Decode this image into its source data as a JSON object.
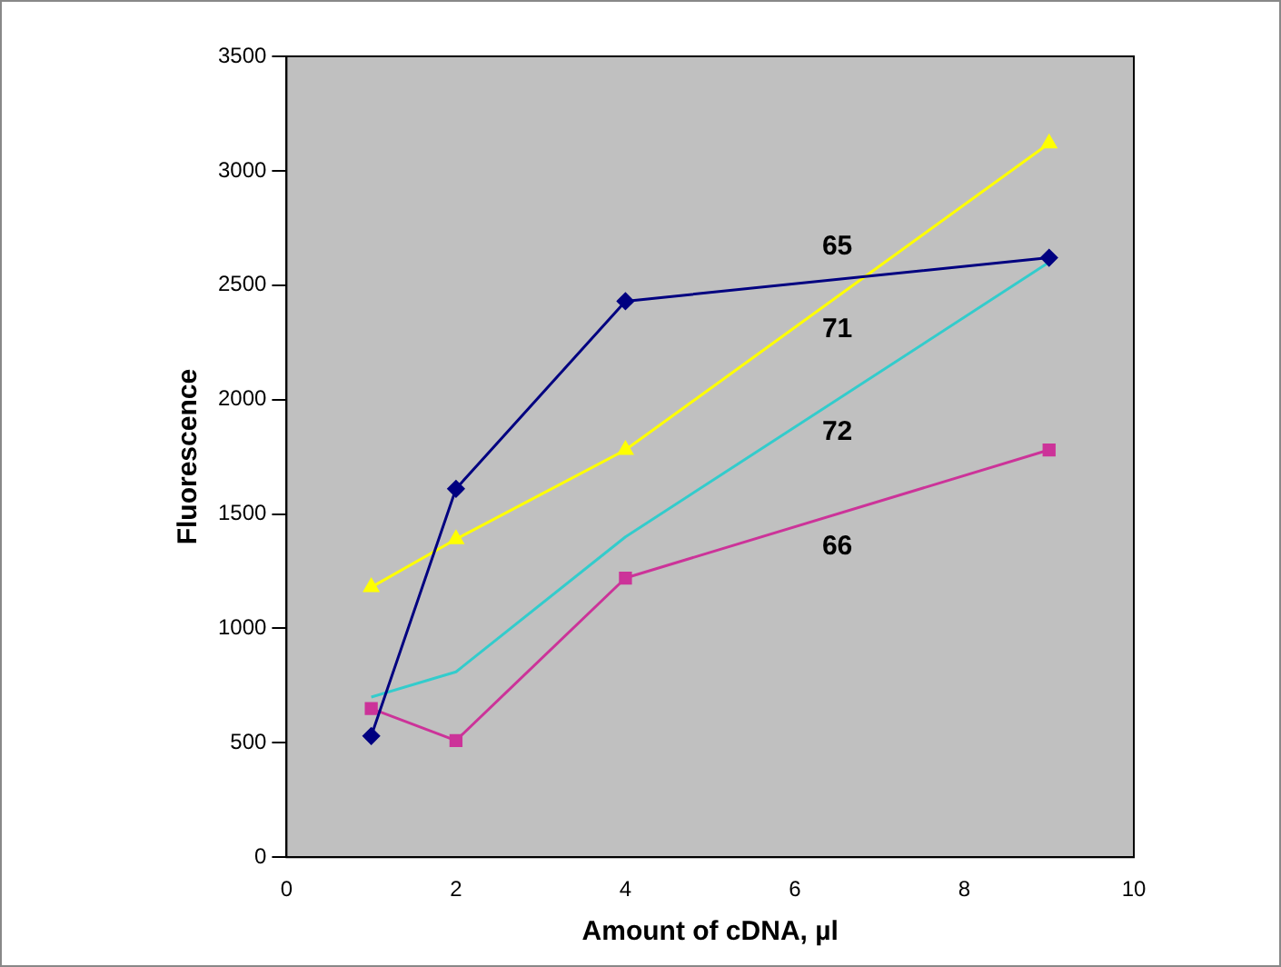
{
  "chart_data": {
    "type": "line",
    "xlabel": "Amount of cDNA, µl",
    "ylabel": "Fluorescence",
    "x": [
      1,
      2,
      4,
      9
    ],
    "series": [
      {
        "name": "65",
        "color": "#000080",
        "marker": "diamond",
        "values": [
          530,
          1610,
          2430,
          2620
        ]
      },
      {
        "name": "71",
        "color": "#ffff00",
        "marker": "triangle",
        "values": [
          1180,
          1390,
          1780,
          3120
        ]
      },
      {
        "name": "72",
        "color": "#33cccc",
        "marker": "none",
        "values": [
          700,
          810,
          1400,
          2600
        ]
      },
      {
        "name": "66",
        "color": "#cc3399",
        "marker": "square",
        "values": [
          650,
          510,
          1220,
          1780
        ]
      }
    ],
    "xlim": [
      0,
      10
    ],
    "xticks": [
      0,
      2,
      4,
      6,
      8,
      10
    ],
    "ylim": [
      0,
      3500
    ],
    "yticks": [
      0,
      500,
      1000,
      1500,
      2000,
      2500,
      3000,
      3500
    ],
    "grid": false,
    "legend": false
  }
}
